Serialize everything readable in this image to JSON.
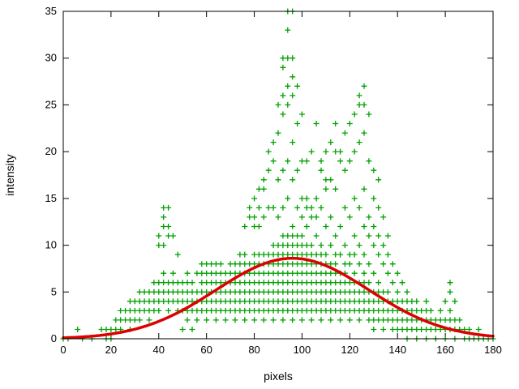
{
  "figure": {
    "background": "#ffffff",
    "border_color": "#000000"
  },
  "chart_data": {
    "type": "scatter",
    "title": "",
    "xlabel": "pixels",
    "ylabel": "intensity",
    "xlim": [
      0,
      180
    ],
    "ylim": [
      0,
      35
    ],
    "x_ticks": [
      0,
      20,
      40,
      60,
      80,
      100,
      120,
      140,
      160,
      180
    ],
    "y_ticks": [
      0,
      5,
      10,
      15,
      20,
      25,
      30,
      35
    ],
    "grid": false,
    "legend": "none",
    "marker": {
      "shape": "plus",
      "color": "#00a000",
      "size": 3.5,
      "stroke_width": 1.3
    },
    "scatter_columns": [
      [
        0,
        [
          0
        ]
      ],
      [
        2,
        [
          0
        ]
      ],
      [
        6,
        [
          1
        ]
      ],
      [
        8,
        [
          0
        ]
      ],
      [
        12,
        [
          0
        ]
      ],
      [
        16,
        [
          1
        ]
      ],
      [
        18,
        [
          0,
          1
        ]
      ],
      [
        20,
        [
          0,
          1
        ]
      ],
      [
        22,
        [
          1,
          2
        ]
      ],
      [
        24,
        [
          1,
          2,
          3
        ]
      ],
      [
        26,
        [
          2,
          3
        ]
      ],
      [
        28,
        [
          1,
          2,
          3,
          4
        ]
      ],
      [
        30,
        [
          2,
          3,
          4
        ]
      ],
      [
        32,
        [
          2,
          3,
          4,
          5
        ]
      ],
      [
        34,
        [
          3,
          4,
          5
        ]
      ],
      [
        36,
        [
          2,
          3,
          4,
          5
        ]
      ],
      [
        38,
        [
          3,
          4,
          5,
          6
        ]
      ],
      [
        40,
        [
          3,
          4,
          5,
          6,
          10,
          11
        ]
      ],
      [
        42,
        [
          4,
          5,
          6,
          7,
          10,
          12,
          13,
          14
        ]
      ],
      [
        44,
        [
          3,
          4,
          5,
          6,
          11,
          12,
          14
        ]
      ],
      [
        46,
        [
          4,
          5,
          6,
          7,
          11
        ]
      ],
      [
        48,
        [
          3,
          4,
          5,
          6,
          9
        ]
      ],
      [
        50,
        [
          1,
          3,
          4,
          5,
          6
        ]
      ],
      [
        52,
        [
          2,
          3,
          4,
          5,
          6,
          7
        ]
      ],
      [
        54,
        [
          1,
          3,
          4,
          5,
          6
        ]
      ],
      [
        56,
        [
          2,
          3,
          4,
          5,
          7
        ]
      ],
      [
        58,
        [
          3,
          4,
          5,
          6,
          7,
          8
        ]
      ],
      [
        60,
        [
          2,
          3,
          4,
          5,
          6,
          7,
          8
        ]
      ],
      [
        62,
        [
          3,
          4,
          5,
          6,
          7,
          8
        ]
      ],
      [
        64,
        [
          2,
          3,
          4,
          5,
          6,
          7,
          8
        ]
      ],
      [
        66,
        [
          3,
          4,
          5,
          6,
          7,
          8
        ]
      ],
      [
        68,
        [
          2,
          3,
          4,
          5,
          6,
          7
        ]
      ],
      [
        70,
        [
          3,
          4,
          5,
          6,
          7,
          8
        ]
      ],
      [
        72,
        [
          2,
          3,
          4,
          5,
          6,
          7,
          8
        ]
      ],
      [
        74,
        [
          3,
          4,
          5,
          6,
          7,
          8,
          9
        ]
      ],
      [
        76,
        [
          2,
          3,
          4,
          5,
          6,
          7,
          8,
          9,
          12
        ]
      ],
      [
        78,
        [
          3,
          4,
          5,
          6,
          7,
          8,
          13,
          14
        ]
      ],
      [
        80,
        [
          2,
          3,
          4,
          5,
          6,
          7,
          8,
          9,
          12,
          13,
          15
        ]
      ],
      [
        82,
        [
          3,
          4,
          5,
          6,
          7,
          8,
          9,
          12,
          14,
          16
        ]
      ],
      [
        84,
        [
          2,
          3,
          4,
          5,
          6,
          7,
          8,
          9,
          13,
          16,
          17
        ]
      ],
      [
        86,
        [
          3,
          4,
          5,
          6,
          7,
          8,
          9,
          14,
          18,
          20
        ]
      ],
      [
        88,
        [
          2,
          3,
          4,
          5,
          6,
          7,
          8,
          9,
          10,
          14,
          19,
          21
        ]
      ],
      [
        90,
        [
          3,
          4,
          5,
          6,
          7,
          8,
          9,
          10,
          13,
          17,
          22,
          25
        ]
      ],
      [
        92,
        [
          2,
          3,
          4,
          5,
          6,
          7,
          8,
          9,
          10,
          11,
          14,
          18,
          24,
          26,
          29,
          30
        ]
      ],
      [
        94,
        [
          3,
          4,
          5,
          6,
          7,
          8,
          9,
          10,
          11,
          15,
          19,
          25,
          27,
          30,
          33,
          35
        ]
      ],
      [
        96,
        [
          2,
          3,
          4,
          5,
          6,
          7,
          8,
          9,
          10,
          11,
          12,
          17,
          21,
          26,
          28,
          30,
          35
        ]
      ],
      [
        98,
        [
          3,
          4,
          5,
          6,
          7,
          8,
          9,
          10,
          11,
          14,
          18,
          23,
          27
        ]
      ],
      [
        100,
        [
          2,
          3,
          4,
          5,
          6,
          7,
          8,
          9,
          10,
          11,
          13,
          15,
          19,
          24
        ]
      ],
      [
        102,
        [
          3,
          4,
          5,
          6,
          7,
          8,
          9,
          10,
          12,
          14,
          15,
          19
        ]
      ],
      [
        104,
        [
          2,
          3,
          4,
          5,
          6,
          7,
          8,
          9,
          10,
          13,
          14,
          20
        ]
      ],
      [
        106,
        [
          3,
          4,
          5,
          6,
          7,
          8,
          9,
          11,
          13,
          15,
          23
        ]
      ],
      [
        108,
        [
          2,
          3,
          4,
          5,
          6,
          7,
          8,
          9,
          10,
          14,
          18,
          19
        ]
      ],
      [
        110,
        [
          3,
          4,
          5,
          6,
          7,
          8,
          9,
          12,
          16,
          17,
          20
        ]
      ],
      [
        112,
        [
          2,
          3,
          4,
          5,
          6,
          7,
          8,
          10,
          13,
          17,
          21
        ]
      ],
      [
        114,
        [
          3,
          4,
          5,
          6,
          7,
          8,
          9,
          11,
          16,
          20,
          23
        ]
      ],
      [
        116,
        [
          2,
          3,
          4,
          5,
          6,
          7,
          9,
          12,
          19,
          20
        ]
      ],
      [
        118,
        [
          3,
          4,
          5,
          6,
          7,
          8,
          10,
          14,
          18,
          22
        ]
      ],
      [
        120,
        [
          2,
          3,
          4,
          5,
          6,
          8,
          9,
          13,
          19,
          23
        ]
      ],
      [
        122,
        [
          3,
          4,
          5,
          6,
          7,
          9,
          11,
          15,
          20,
          24
        ]
      ],
      [
        124,
        [
          2,
          3,
          4,
          5,
          6,
          8,
          10,
          14,
          21,
          25,
          26
        ]
      ],
      [
        126,
        [
          3,
          4,
          5,
          6,
          7,
          9,
          12,
          16,
          22,
          25,
          27
        ]
      ],
      [
        128,
        [
          2,
          3,
          4,
          5,
          6,
          8,
          11,
          13,
          19,
          24
        ]
      ],
      [
        130,
        [
          1,
          2,
          3,
          4,
          5,
          7,
          10,
          12,
          15,
          18
        ]
      ],
      [
        132,
        [
          2,
          3,
          4,
          5,
          6,
          9,
          11,
          14,
          17
        ]
      ],
      [
        134,
        [
          1,
          2,
          3,
          4,
          5,
          8,
          10,
          13
        ]
      ],
      [
        136,
        [
          2,
          3,
          4,
          5,
          7,
          9,
          11
        ]
      ],
      [
        138,
        [
          1,
          2,
          3,
          4,
          6,
          8
        ]
      ],
      [
        140,
        [
          1,
          2,
          3,
          4,
          5,
          7
        ]
      ],
      [
        142,
        [
          1,
          2,
          3,
          4,
          6
        ]
      ],
      [
        144,
        [
          0,
          1,
          2,
          3,
          4,
          5
        ]
      ],
      [
        146,
        [
          1,
          2,
          3,
          4
        ]
      ],
      [
        148,
        [
          0,
          1,
          2,
          3,
          4
        ]
      ],
      [
        150,
        [
          1,
          2,
          3
        ]
      ],
      [
        152,
        [
          0,
          1,
          2,
          3,
          4
        ]
      ],
      [
        154,
        [
          1,
          2,
          3
        ]
      ],
      [
        156,
        [
          0,
          1,
          2
        ]
      ],
      [
        158,
        [
          1,
          2,
          3
        ]
      ],
      [
        160,
        [
          0,
          1,
          2,
          4
        ]
      ],
      [
        162,
        [
          1,
          2,
          3,
          5,
          6
        ]
      ],
      [
        164,
        [
          0,
          1,
          2,
          4
        ]
      ],
      [
        166,
        [
          1,
          2
        ]
      ],
      [
        168,
        [
          0,
          1
        ]
      ],
      [
        170,
        [
          0,
          1
        ]
      ],
      [
        172,
        [
          0
        ]
      ],
      [
        174,
        [
          0,
          1
        ]
      ],
      [
        176,
        [
          0
        ]
      ],
      [
        178,
        [
          0
        ]
      ],
      [
        180,
        [
          0
        ]
      ]
    ],
    "fit_curve": {
      "name": "gaussian-fit",
      "model": "gaussian",
      "amplitude": 8.6,
      "mean": 96,
      "sigma": 32,
      "color": "#dd0000",
      "width": 3.5
    }
  }
}
